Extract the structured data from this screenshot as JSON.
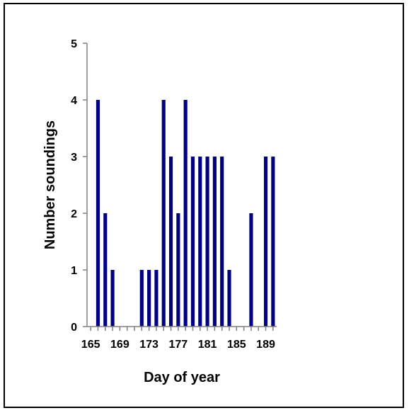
{
  "chart_data": {
    "type": "bar",
    "title": "",
    "xlabel": "Day of year",
    "ylabel": "Number soundings",
    "x": [
      165,
      166,
      167,
      168,
      169,
      170,
      171,
      172,
      173,
      174,
      175,
      176,
      177,
      178,
      179,
      180,
      181,
      182,
      183,
      184,
      185,
      186,
      187,
      188,
      189,
      190
    ],
    "values": [
      0,
      4,
      2,
      1,
      0,
      0,
      0,
      1,
      1,
      1,
      4,
      3,
      2,
      4,
      3,
      3,
      3,
      3,
      3,
      1,
      0,
      0,
      2,
      0,
      3,
      3
    ],
    "xticks": [
      "165",
      "169",
      "173",
      "177",
      "181",
      "185",
      "189"
    ],
    "yticks": [
      "0",
      "1",
      "2",
      "3",
      "4",
      "5"
    ],
    "xlim": [
      164.5,
      190.5
    ],
    "ylim": [
      0,
      5
    ],
    "grid": false,
    "legend": "none",
    "bar_color": "#000080",
    "axis_color": "#808080"
  }
}
